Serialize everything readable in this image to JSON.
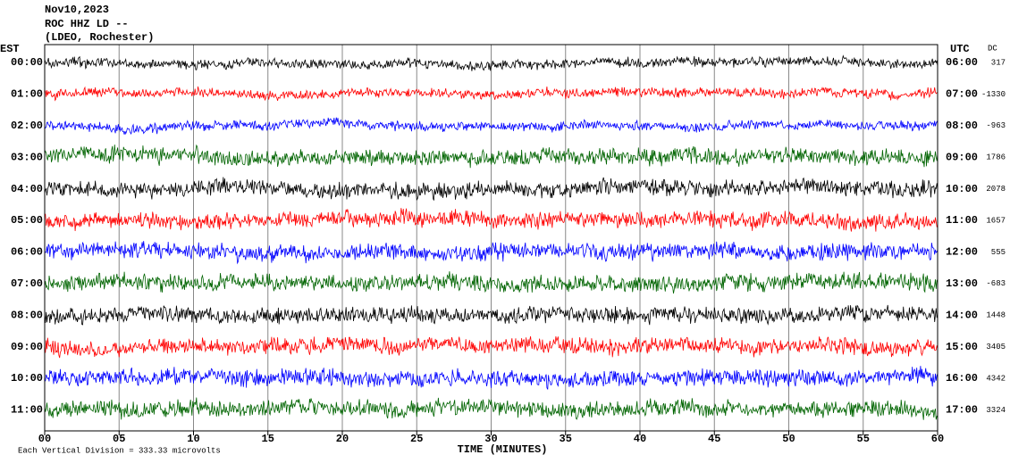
{
  "header": {
    "date": "Nov10,2023",
    "station": "ROC HHZ LD --",
    "location": "(LDEO, Rochester)"
  },
  "left_axis_title": "EST",
  "right_axis_title": "UTC",
  "dc_title": "DC",
  "rows": [
    {
      "est": "00:00",
      "utc": "06:00",
      "dc": "317"
    },
    {
      "est": "01:00",
      "utc": "07:00",
      "dc": "-1330"
    },
    {
      "est": "02:00",
      "utc": "08:00",
      "dc": "-963"
    },
    {
      "est": "03:00",
      "utc": "09:00",
      "dc": "1786"
    },
    {
      "est": "04:00",
      "utc": "10:00",
      "dc": "2078"
    },
    {
      "est": "05:00",
      "utc": "11:00",
      "dc": "1657"
    },
    {
      "est": "06:00",
      "utc": "12:00",
      "dc": "555"
    },
    {
      "est": "07:00",
      "utc": "13:00",
      "dc": "-683"
    },
    {
      "est": "08:00",
      "utc": "14:00",
      "dc": "1448"
    },
    {
      "est": "09:00",
      "utc": "15:00",
      "dc": "3405"
    },
    {
      "est": "10:00",
      "utc": "16:00",
      "dc": "4342"
    },
    {
      "est": "11:00",
      "utc": "17:00",
      "dc": "3324"
    }
  ],
  "x_axis": {
    "title": "TIME (MINUTES)",
    "lim": [
      0,
      60
    ],
    "ticks": [
      {
        "value": 0,
        "label": "00"
      },
      {
        "value": 5,
        "label": "05"
      },
      {
        "value": 10,
        "label": "10"
      },
      {
        "value": 15,
        "label": "15"
      },
      {
        "value": 20,
        "label": "20"
      },
      {
        "value": 25,
        "label": "25"
      },
      {
        "value": 30,
        "label": "30"
      },
      {
        "value": 35,
        "label": "35"
      },
      {
        "value": 40,
        "label": "40"
      },
      {
        "value": 45,
        "label": "45"
      },
      {
        "value": 50,
        "label": "50"
      },
      {
        "value": 55,
        "label": "55"
      },
      {
        "value": 60,
        "label": "60"
      }
    ]
  },
  "footer": "Each Vertical Division =  333.33 microvolts"
}
